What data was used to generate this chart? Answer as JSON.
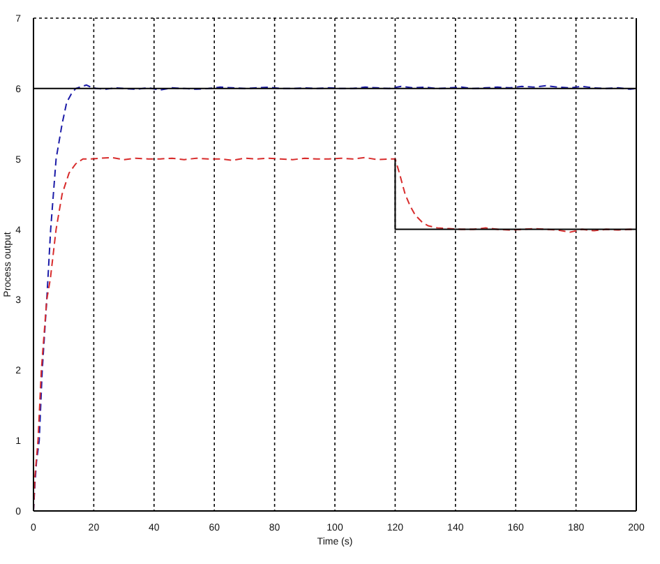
{
  "chart_data": {
    "type": "line",
    "xlabel": "Time (s)",
    "ylabel": "Process output",
    "xlim": [
      0,
      200
    ],
    "xticks": [
      0,
      20,
      40,
      60,
      80,
      100,
      120,
      140,
      160,
      180,
      200
    ],
    "ylim": [
      0,
      7
    ],
    "yticks": [
      0,
      1,
      2,
      3,
      4,
      5,
      6,
      7
    ],
    "grid": true,
    "series": [
      {
        "color": "#1c1ca8",
        "line_style": "dashed",
        "x": [
          0,
          0.5,
          1,
          1.9,
          2.9,
          4.4,
          5.7,
          7.5,
          9.5,
          11,
          12.5,
          14,
          16,
          17.6,
          19,
          21,
          24,
          27,
          30,
          34,
          38,
          42,
          46,
          50,
          54,
          58,
          62,
          66,
          70,
          74,
          78,
          82,
          86,
          90,
          94,
          98,
          102,
          106,
          110,
          114,
          118,
          122,
          126,
          130,
          134,
          138,
          142,
          146,
          150,
          154,
          158,
          162,
          166,
          170,
          174,
          178,
          182,
          186,
          190,
          194,
          198,
          200
        ],
        "values": [
          0,
          0.4,
          0.7,
          1,
          2,
          3,
          4,
          5,
          5.5,
          5.8,
          5.92,
          6,
          6.03,
          6.05,
          6.02,
          6,
          5.99,
          6.01,
          6,
          5.99,
          6.01,
          5.98,
          6.01,
          6,
          5.99,
          6,
          6.02,
          6.01,
          6,
          6.01,
          6.02,
          6,
          6,
          6.01,
          6,
          6.01,
          6,
          6,
          6.02,
          6.01,
          6,
          6.03,
          6.01,
          6.02,
          6,
          6.01,
          6.02,
          6,
          6.01,
          6.02,
          6.01,
          6.03,
          6.02,
          6.04,
          6.02,
          6.01,
          6.03,
          6.01,
          6,
          6.01,
          5.99,
          6
        ]
      },
      {
        "color": "#d82c2c",
        "line_style": "dashed",
        "x": [
          0,
          0.5,
          1.5,
          2.6,
          4.4,
          5.6,
          7.5,
          9.5,
          11.8,
          14,
          16.4,
          19,
          22,
          26,
          30,
          34,
          38,
          42,
          46,
          50,
          54,
          58,
          62,
          66,
          70,
          74,
          78,
          82,
          86,
          90,
          94,
          98,
          102,
          106,
          110,
          114,
          118,
          120,
          121.4,
          123.3,
          125,
          126.7,
          129,
          131,
          134,
          138,
          142,
          146,
          150,
          154,
          158,
          162,
          166,
          170,
          174,
          178,
          182,
          186,
          190,
          194,
          198,
          200
        ],
        "values": [
          0,
          0.5,
          1,
          2,
          3,
          3.3,
          4,
          4.5,
          4.8,
          4.93,
          5,
          5,
          5.01,
          5.02,
          4.99,
          5.01,
          5,
          5,
          5.01,
          4.99,
          5.01,
          5,
          5,
          4.98,
          5.01,
          5,
          5.01,
          5,
          4.99,
          5.01,
          5,
          5,
          5.01,
          5,
          5.02,
          4.99,
          5,
          5,
          4.8,
          4.5,
          4.33,
          4.2,
          4.1,
          4.05,
          4.02,
          4.01,
          4,
          4,
          4.02,
          4,
          3.99,
          4,
          4.01,
          4,
          3.99,
          3.96,
          4,
          3.98,
          4,
          3.99,
          4,
          3.99
        ]
      },
      {
        "color": "#000000",
        "line_style": "solid",
        "x": [
          0,
          200
        ],
        "values": [
          6,
          6
        ]
      },
      {
        "color": "#000000",
        "line_style": "solid",
        "x": [
          120,
          120,
          200
        ],
        "values": [
          5,
          4,
          4
        ]
      }
    ]
  }
}
